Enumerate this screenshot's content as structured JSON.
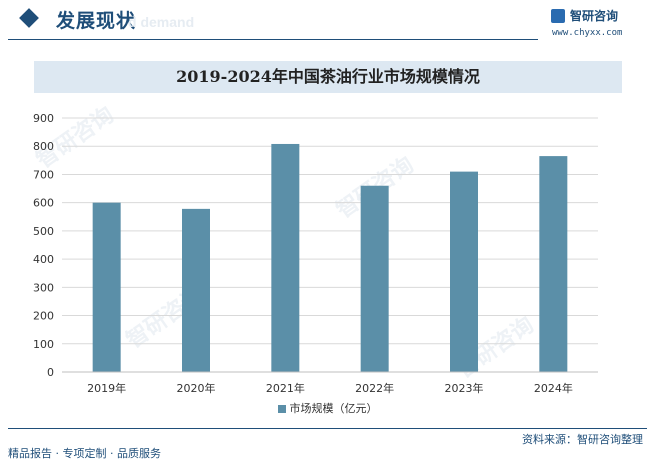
{
  "header": {
    "section_title": "发展现状",
    "ghost_text": "d demand",
    "brand_name": "智研咨询",
    "brand_url": "www.chyxx.com"
  },
  "watermark_text": "智研咨询",
  "colors": {
    "bar": "#5b8fa8",
    "accent": "#1f4e79",
    "title_band": "#dde8f2"
  },
  "chart_data": {
    "type": "bar",
    "title": "2019-2024年中国茶油行业市场规模情况",
    "categories": [
      "2019年",
      "2020年",
      "2021年",
      "2022年",
      "2023年",
      "2024年"
    ],
    "series": [
      {
        "name": "市场规模（亿元）",
        "values": [
          600,
          578,
          808,
          660,
          710,
          765
        ]
      }
    ],
    "ylim": [
      0,
      900
    ],
    "yticks": [
      0,
      100,
      200,
      300,
      400,
      500,
      600,
      700,
      800,
      900
    ],
    "grid": true,
    "legend_position": "bottom"
  },
  "footer": {
    "left": "精品报告 · 专项定制 · 品质服务",
    "right": "资料来源：智研咨询整理"
  }
}
